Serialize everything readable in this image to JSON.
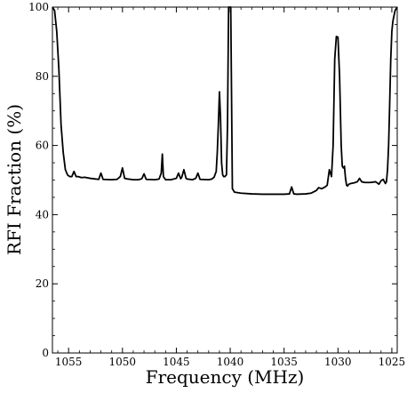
{
  "chart_data": {
    "type": "line",
    "title": "",
    "xlabel": "Frequency (MHz)",
    "ylabel": "RFI Fraction (%)",
    "xlim": [
      1056.5,
      1024.5
    ],
    "ylim": [
      0,
      100
    ],
    "x_reversed": true,
    "grid": false,
    "x_ticks": [
      1055,
      1050,
      1045,
      1040,
      1035,
      1030,
      1025
    ],
    "y_ticks": [
      0,
      20,
      40,
      60,
      80,
      100
    ],
    "series": [
      {
        "x": [
          1056.5,
          1056.3,
          1056.1,
          1055.9,
          1055.7,
          1055.5,
          1055.3,
          1055.1,
          1054.9,
          1054.7,
          1054.5,
          1054.3,
          1054.1,
          1053.8,
          1053.5,
          1053.0,
          1052.5,
          1052.2,
          1052.0,
          1051.8,
          1051.0,
          1050.5,
          1050.2,
          1050.0,
          1049.8,
          1049.5,
          1049.0,
          1048.5,
          1048.2,
          1048.0,
          1047.8,
          1047.0,
          1046.6,
          1046.4,
          1046.3,
          1046.2,
          1046.0,
          1045.5,
          1045.0,
          1044.8,
          1044.6,
          1044.5,
          1044.3,
          1044.1,
          1044.0,
          1043.5,
          1043.2,
          1043.0,
          1042.8,
          1042.0,
          1041.7,
          1041.5,
          1041.3,
          1041.2,
          1041.1,
          1041.0,
          1040.9,
          1040.8,
          1040.7,
          1040.6,
          1040.5,
          1040.35,
          1040.25,
          1040.15,
          1040.05,
          1039.95,
          1039.8,
          1039.6,
          1039.0,
          1038.0,
          1037.0,
          1036.0,
          1035.0,
          1034.5,
          1034.3,
          1034.1,
          1033.8,
          1033.0,
          1032.5,
          1032.0,
          1031.8,
          1031.5,
          1031.2,
          1031.0,
          1030.8,
          1030.6,
          1030.45,
          1030.3,
          1030.15,
          1030.0,
          1029.85,
          1029.7,
          1029.6,
          1029.5,
          1029.4,
          1029.3,
          1029.2,
          1029.1,
          1029.0,
          1028.8,
          1028.5,
          1028.2,
          1028.0,
          1027.8,
          1027.5,
          1027.0,
          1026.5,
          1026.2,
          1026.0,
          1025.8,
          1025.6,
          1025.5,
          1025.4,
          1025.3,
          1025.2,
          1025.1,
          1025.0,
          1024.9,
          1024.7,
          1024.5
        ],
        "y": [
          100,
          99,
          93,
          82,
          66,
          58,
          53,
          51.5,
          51,
          51,
          52.5,
          51,
          51,
          50.7,
          50.8,
          50.5,
          50.3,
          50.2,
          52,
          50.2,
          50.1,
          50.2,
          51,
          53.5,
          50.5,
          50.3,
          50.1,
          50.1,
          50.4,
          51.8,
          50.2,
          50.1,
          50.3,
          52,
          57.5,
          51,
          50.1,
          50.1,
          50.5,
          52,
          50.4,
          50.8,
          53,
          50.5,
          50.3,
          50.1,
          50.5,
          52,
          50.2,
          50.1,
          50.3,
          50.8,
          52.5,
          58,
          66,
          75.5,
          68,
          55,
          51.5,
          51,
          51,
          51.5,
          66,
          100,
          100,
          100,
          47.5,
          46.5,
          46.2,
          46,
          45.9,
          45.9,
          45.9,
          46,
          48,
          46,
          45.9,
          46,
          46.2,
          47,
          47.8,
          47.5,
          48,
          48.5,
          53,
          51,
          60,
          85,
          91.5,
          91.3,
          80,
          60,
          54,
          53.5,
          54,
          50.5,
          48.5,
          48.3,
          48.8,
          49,
          49.2,
          49.5,
          50.5,
          49.5,
          49.3,
          49.3,
          49.5,
          48.8,
          49.8,
          50.2,
          49,
          49.5,
          53,
          60,
          72,
          85,
          93,
          96,
          99,
          100
        ]
      }
    ]
  }
}
